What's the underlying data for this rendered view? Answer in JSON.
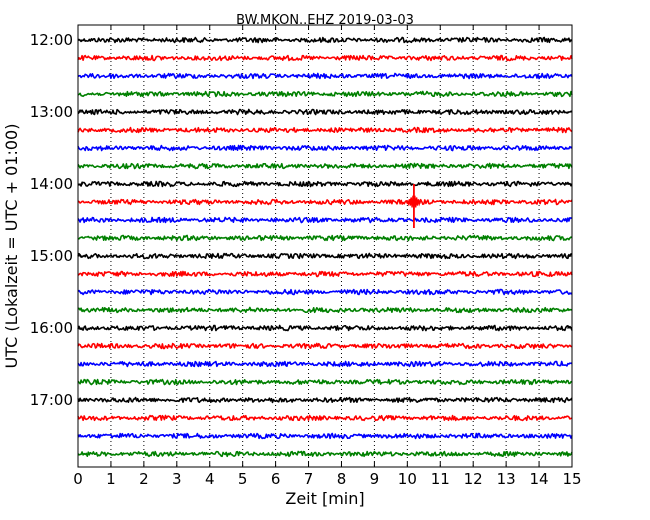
{
  "chart_data": {
    "type": "line",
    "title": "BW.MKON..EHZ 2019-03-03",
    "xlabel": "Zeit  [min]",
    "ylabel": "UTC (Lokalzeit = UTC + 01:00)",
    "xlim": [
      0,
      15
    ],
    "x_ticks": [
      "0",
      "1",
      "2",
      "3",
      "4",
      "5",
      "6",
      "7",
      "8",
      "9",
      "10",
      "11",
      "12",
      "13",
      "14",
      "15"
    ],
    "y_ticks": [
      "12:00",
      "13:00",
      "14:00",
      "15:00",
      "16:00",
      "17:00"
    ],
    "grid": "vertical dotted",
    "trace_interval_min": 15,
    "trace_colors": [
      "#000000",
      "#ff0000",
      "#0000ff",
      "#008000"
    ],
    "traces": [
      {
        "start": "12:00",
        "color": "#000000"
      },
      {
        "start": "12:15",
        "color": "#ff0000"
      },
      {
        "start": "12:30",
        "color": "#0000ff"
      },
      {
        "start": "12:45",
        "color": "#008000"
      },
      {
        "start": "13:00",
        "color": "#000000"
      },
      {
        "start": "13:15",
        "color": "#ff0000"
      },
      {
        "start": "13:30",
        "color": "#0000ff"
      },
      {
        "start": "13:45",
        "color": "#008000"
      },
      {
        "start": "14:00",
        "color": "#000000"
      },
      {
        "start": "14:15",
        "color": "#ff0000"
      },
      {
        "start": "14:30",
        "color": "#0000ff"
      },
      {
        "start": "14:45",
        "color": "#008000"
      },
      {
        "start": "15:00",
        "color": "#000000"
      },
      {
        "start": "15:15",
        "color": "#ff0000"
      },
      {
        "start": "15:30",
        "color": "#0000ff"
      },
      {
        "start": "15:45",
        "color": "#008000"
      },
      {
        "start": "16:00",
        "color": "#000000"
      },
      {
        "start": "16:15",
        "color": "#ff0000"
      },
      {
        "start": "16:30",
        "color": "#0000ff"
      },
      {
        "start": "16:45",
        "color": "#008000"
      },
      {
        "start": "17:00",
        "color": "#000000"
      },
      {
        "start": "17:15",
        "color": "#ff0000"
      },
      {
        "start": "17:30",
        "color": "#0000ff"
      },
      {
        "start": "17:45",
        "color": "#008000"
      }
    ],
    "events": [
      {
        "trace_start": "14:15",
        "minute": 10.2
      }
    ]
  }
}
